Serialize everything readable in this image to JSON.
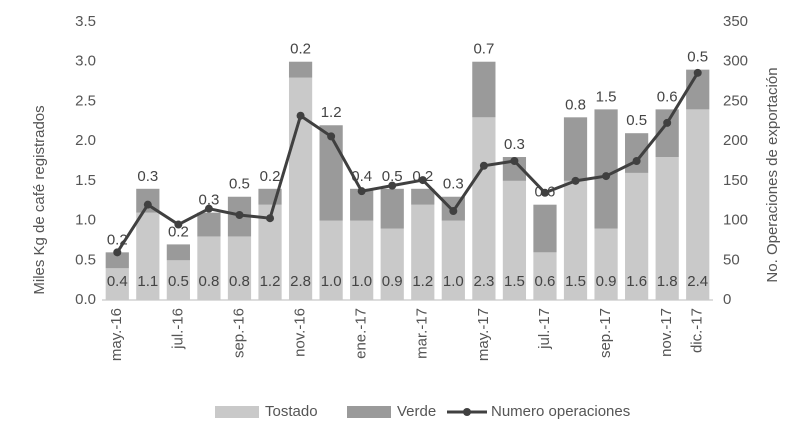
{
  "chart_data": {
    "type": "stacked-bar-line",
    "ylabel": "Miles Kg de café registrados",
    "y2label": "No. Operaciones de exportación",
    "categories": [
      "may.-16",
      null,
      "jul.-16",
      null,
      "sep.-16",
      null,
      "nov.-16",
      null,
      "ene.-17",
      null,
      "mar.-17",
      null,
      "may.-17",
      null,
      "jul.-17",
      null,
      "sep.-17",
      null,
      "nov.-17",
      "dic.-17"
    ],
    "series": [
      {
        "name": "Tostado",
        "color": "#c9c9c9",
        "kind": "bar",
        "values": [
          0.4,
          1.1,
          0.5,
          0.8,
          0.8,
          1.2,
          2.8,
          1.0,
          1.0,
          0.9,
          1.2,
          1.0,
          2.3,
          1.5,
          0.6,
          1.5,
          0.9,
          1.6,
          1.8,
          2.4
        ],
        "value_labels": [
          "0.4",
          "1.1",
          "0.5",
          "0.8",
          "0.8",
          "1.2",
          "2.8",
          "1.0",
          "1.0",
          "0.9",
          "1.2",
          "1.0",
          "2.3",
          "1.5",
          "0.6",
          "1.5",
          "0.9",
          "1.6",
          "1.8",
          "2.4"
        ]
      },
      {
        "name": "Verde",
        "color": "#9a9a9a",
        "kind": "bar",
        "values": [
          0.2,
          0.3,
          0.2,
          0.3,
          0.5,
          0.2,
          0.2,
          1.2,
          0.4,
          0.5,
          0.2,
          0.3,
          0.7,
          0.3,
          0.6,
          0.8,
          1.5,
          0.5,
          0.6,
          0.5
        ],
        "value_labels": [
          "0.2",
          "0.3",
          "0.2",
          "0.3",
          "0.5",
          "0.2",
          "0.2",
          "1.2",
          "0.4",
          "0.5",
          "0.2",
          "0.3",
          "0.7",
          "0.3",
          "0.6",
          "0.8",
          "1.5",
          "0.5",
          "0.6",
          "0.5"
        ]
      },
      {
        "name": "Numero operaciones",
        "color": "#404040",
        "kind": "line",
        "axis": "y2",
        "values": [
          60,
          120,
          95,
          115,
          107,
          103,
          232,
          206,
          137,
          144,
          151,
          112,
          169,
          175,
          135,
          150,
          156,
          175,
          223,
          286
        ]
      }
    ],
    "ylim": [
      0,
      3.5
    ],
    "yticks": [
      {
        "value": 0,
        "label": "0.0"
      },
      0.5,
      {
        "value": 1,
        "label": "1.0"
      },
      1.5,
      {
        "value": 2,
        "label": "2.0"
      },
      2.5,
      {
        "value": 3,
        "label": "3.0"
      },
      3.5
    ],
    "y2lim": [
      0,
      350
    ],
    "y2ticks": [
      0,
      50,
      100,
      150,
      200,
      250,
      300,
      350
    ],
    "legend": "bottom"
  }
}
